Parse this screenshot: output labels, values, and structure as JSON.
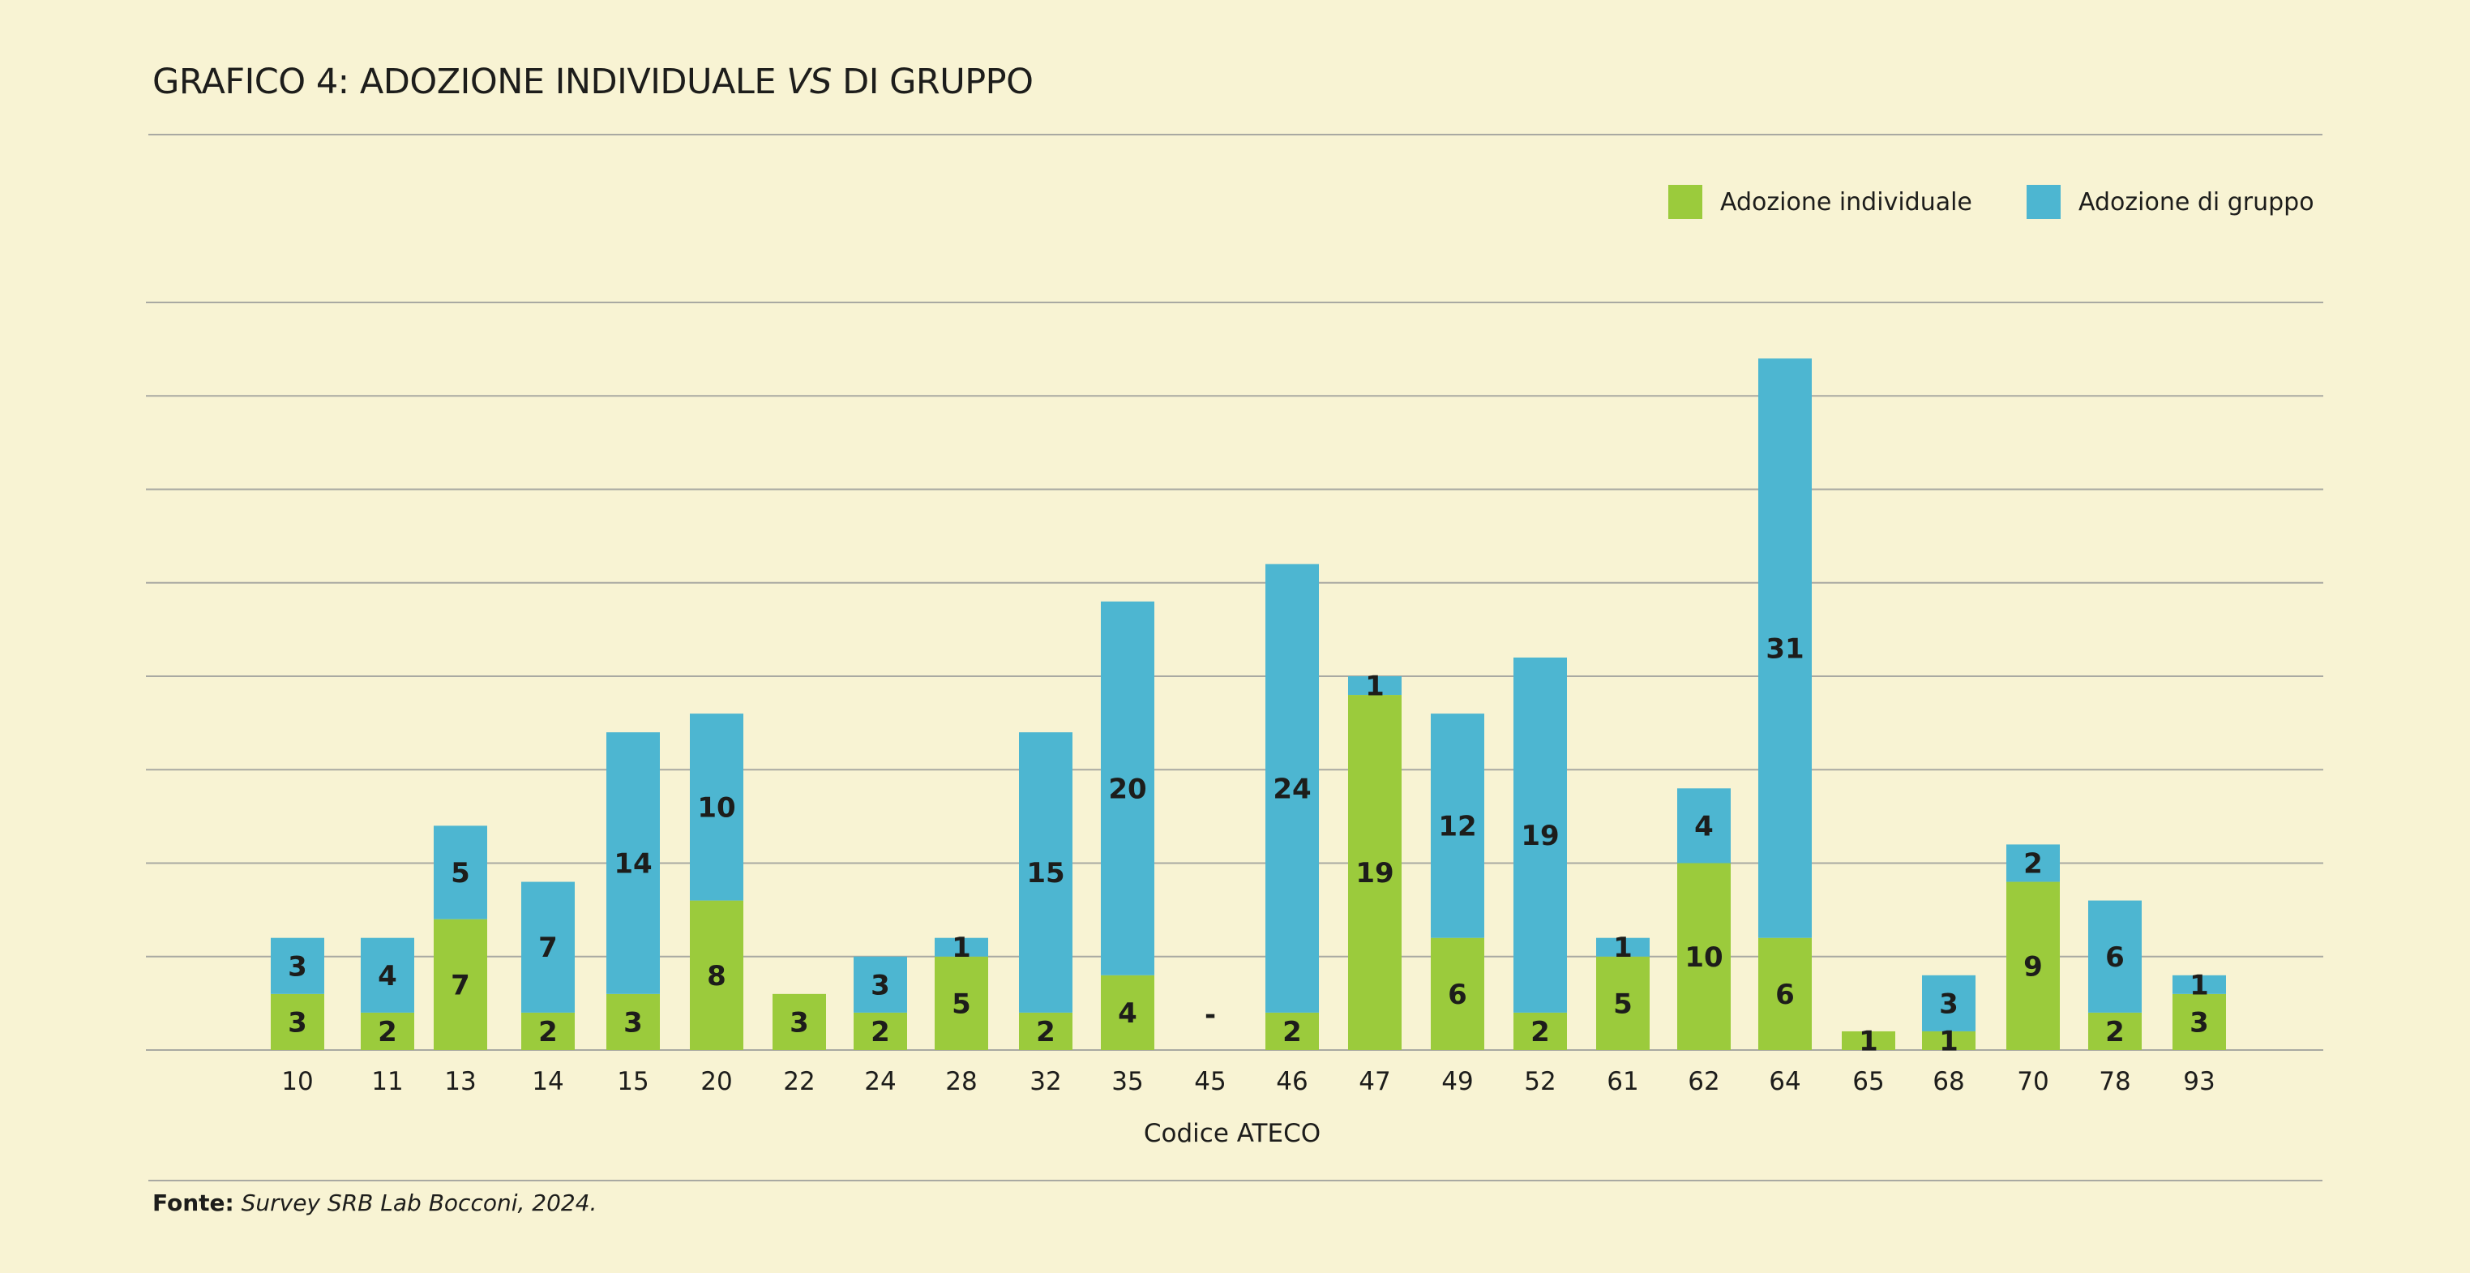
{
  "title": {
    "prefix": "GRAFICO 4: ADOZIONE INDIVIDUALE ",
    "italic": "VS",
    "suffix": " DI GRUPPO"
  },
  "source": {
    "label": "Fonte:",
    "text": " Survey SRB Lab Bocconi, 2024."
  },
  "colors": {
    "background": "#f8f3d3",
    "individual": "#9bcb3c",
    "group": "#4db6d1",
    "grid": "#a9a9a2"
  },
  "chart_data": {
    "type": "bar",
    "stacked": true,
    "xlabel": "Codice ATECO",
    "ylabel": "",
    "ylim": [
      0,
      40
    ],
    "grid": true,
    "legend_position": "top-right",
    "categories": [
      "10",
      "11",
      "13",
      "14",
      "15",
      "20",
      "22",
      "24",
      "28",
      "32",
      "35",
      "45",
      "46",
      "47",
      "49",
      "52",
      "61",
      "62",
      "64",
      "65",
      "68",
      "70",
      "78",
      "93"
    ],
    "series": [
      {
        "name": "Adozione individuale",
        "color": "#9bcb3c",
        "values": [
          3,
          2,
          7,
          2,
          3,
          8,
          3,
          2,
          5,
          2,
          4,
          0,
          2,
          19,
          6,
          2,
          5,
          10,
          6,
          1,
          1,
          9,
          2,
          3
        ]
      },
      {
        "name": "Adozione di gruppo",
        "color": "#4db6d1",
        "values": [
          3,
          4,
          5,
          7,
          14,
          10,
          0,
          3,
          1,
          15,
          20,
          0,
          24,
          1,
          12,
          19,
          1,
          4,
          31,
          0,
          3,
          2,
          6,
          1
        ]
      }
    ],
    "empty_label": "-"
  }
}
